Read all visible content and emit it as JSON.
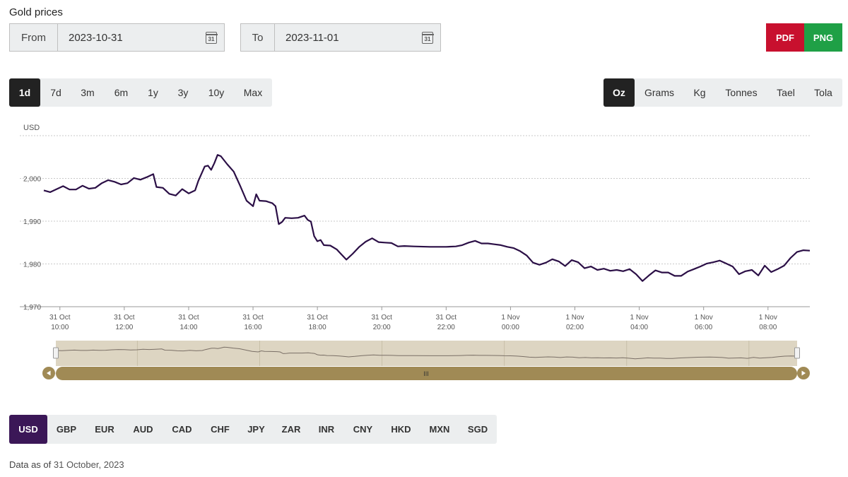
{
  "title": "Gold prices",
  "from": {
    "label": "From",
    "value": "2023-10-31"
  },
  "to": {
    "label": "To",
    "value": "2023-11-01"
  },
  "calendar_icon_text": "31",
  "export": {
    "pdf": "PDF",
    "png": "PNG",
    "pdf_color": "#c8102e",
    "png_color": "#1fa046"
  },
  "ranges": [
    "1d",
    "7d",
    "3m",
    "6m",
    "1y",
    "3y",
    "10y",
    "Max"
  ],
  "active_range": "1d",
  "units": [
    "Oz",
    "Grams",
    "Kg",
    "Tonnes",
    "Tael",
    "Tola"
  ],
  "active_unit": "Oz",
  "currencies": [
    "USD",
    "GBP",
    "EUR",
    "AUD",
    "CAD",
    "CHF",
    "JPY",
    "ZAR",
    "INR",
    "CNY",
    "HKD",
    "MXN",
    "SGD"
  ],
  "active_currency": "USD",
  "footer": {
    "prefix": "Data as of",
    "date": "31 October, 2023"
  },
  "chart_data": {
    "type": "line",
    "ylabel": "USD",
    "ylim": [
      1970,
      2010
    ],
    "yticks": [
      "1,970",
      "1,980",
      "1,990",
      "2,000"
    ],
    "ytick_values": [
      1970,
      1980,
      1990,
      2000
    ],
    "xlim": [
      9.5,
      33.3
    ],
    "xticks": [
      {
        "h": 10,
        "day": "31 Oct",
        "time": "10:00"
      },
      {
        "h": 12,
        "day": "31 Oct",
        "time": "12:00"
      },
      {
        "h": 14,
        "day": "31 Oct",
        "time": "14:00"
      },
      {
        "h": 16,
        "day": "31 Oct",
        "time": "16:00"
      },
      {
        "h": 18,
        "day": "31 Oct",
        "time": "18:00"
      },
      {
        "h": 20,
        "day": "31 Oct",
        "time": "20:00"
      },
      {
        "h": 22,
        "day": "31 Oct",
        "time": "22:00"
      },
      {
        "h": 24,
        "day": "1 Nov",
        "time": "00:00"
      },
      {
        "h": 26,
        "day": "1 Nov",
        "time": "02:00"
      },
      {
        "h": 28,
        "day": "1 Nov",
        "time": "04:00"
      },
      {
        "h": 30,
        "day": "1 Nov",
        "time": "06:00"
      },
      {
        "h": 32,
        "day": "1 Nov",
        "time": "08:00"
      }
    ],
    "series": [
      {
        "line_color": "#2b0f46",
        "points": [
          [
            9.5,
            1997.2
          ],
          [
            9.7,
            1996.8
          ],
          [
            9.9,
            1997.5
          ],
          [
            10.1,
            1998.2
          ],
          [
            10.3,
            1997.4
          ],
          [
            10.5,
            1997.4
          ],
          [
            10.7,
            1998.3
          ],
          [
            10.9,
            1997.6
          ],
          [
            11.1,
            1997.8
          ],
          [
            11.3,
            1998.9
          ],
          [
            11.5,
            1999.6
          ],
          [
            11.7,
            1999.2
          ],
          [
            11.9,
            1998.6
          ],
          [
            12.1,
            1998.9
          ],
          [
            12.3,
            2000.1
          ],
          [
            12.5,
            1999.7
          ],
          [
            12.7,
            2000.3
          ],
          [
            12.9,
            2001.0
          ],
          [
            13.0,
            1998.0
          ],
          [
            13.2,
            1997.8
          ],
          [
            13.4,
            1996.4
          ],
          [
            13.6,
            1996.0
          ],
          [
            13.8,
            1997.5
          ],
          [
            14.0,
            1996.5
          ],
          [
            14.2,
            1997.2
          ],
          [
            14.3,
            1999.4
          ],
          [
            14.5,
            2002.8
          ],
          [
            14.6,
            2003.0
          ],
          [
            14.7,
            2002.0
          ],
          [
            14.8,
            2003.6
          ],
          [
            14.9,
            2005.5
          ],
          [
            15.0,
            2005.2
          ],
          [
            15.2,
            2003.3
          ],
          [
            15.4,
            2001.6
          ],
          [
            15.6,
            1998.3
          ],
          [
            15.8,
            1994.8
          ],
          [
            16.0,
            1993.5
          ],
          [
            16.1,
            1996.3
          ],
          [
            16.2,
            1994.8
          ],
          [
            16.4,
            1994.7
          ],
          [
            16.6,
            1994.2
          ],
          [
            16.7,
            1993.5
          ],
          [
            16.8,
            1989.3
          ],
          [
            16.9,
            1989.8
          ],
          [
            17.0,
            1990.8
          ],
          [
            17.2,
            1990.7
          ],
          [
            17.4,
            1990.8
          ],
          [
            17.6,
            1991.3
          ],
          [
            17.7,
            1990.3
          ],
          [
            17.8,
            1989.9
          ],
          [
            17.9,
            1986.5
          ],
          [
            18.0,
            1985.3
          ],
          [
            18.1,
            1985.6
          ],
          [
            18.2,
            1984.4
          ],
          [
            18.4,
            1984.3
          ],
          [
            18.6,
            1983.4
          ],
          [
            18.7,
            1982.6
          ],
          [
            18.9,
            1981.0
          ],
          [
            19.1,
            1982.4
          ],
          [
            19.3,
            1984.0
          ],
          [
            19.5,
            1985.2
          ],
          [
            19.7,
            1986.0
          ],
          [
            19.9,
            1985.1
          ],
          [
            20.1,
            1985.0
          ],
          [
            20.3,
            1984.9
          ],
          [
            20.5,
            1984.1
          ],
          [
            20.7,
            1984.2
          ],
          [
            21.0,
            1984.1
          ],
          [
            21.5,
            1984.0
          ],
          [
            22.0,
            1984.0
          ],
          [
            22.3,
            1984.1
          ],
          [
            22.5,
            1984.4
          ],
          [
            22.7,
            1985.0
          ],
          [
            22.9,
            1985.4
          ],
          [
            23.1,
            1984.8
          ],
          [
            23.3,
            1984.8
          ],
          [
            23.5,
            1984.6
          ],
          [
            23.7,
            1984.4
          ],
          [
            23.9,
            1984.0
          ],
          [
            24.1,
            1983.7
          ],
          [
            24.3,
            1983.0
          ],
          [
            24.5,
            1982.0
          ],
          [
            24.7,
            1980.3
          ],
          [
            24.9,
            1979.8
          ],
          [
            25.1,
            1980.3
          ],
          [
            25.3,
            1981.1
          ],
          [
            25.5,
            1980.6
          ],
          [
            25.7,
            1979.5
          ],
          [
            25.9,
            1980.9
          ],
          [
            26.1,
            1980.4
          ],
          [
            26.3,
            1979.0
          ],
          [
            26.5,
            1979.4
          ],
          [
            26.7,
            1978.6
          ],
          [
            26.9,
            1978.9
          ],
          [
            27.1,
            1978.4
          ],
          [
            27.3,
            1978.6
          ],
          [
            27.5,
            1978.3
          ],
          [
            27.7,
            1978.8
          ],
          [
            27.9,
            1977.6
          ],
          [
            28.1,
            1976.0
          ],
          [
            28.3,
            1977.3
          ],
          [
            28.5,
            1978.5
          ],
          [
            28.7,
            1978.0
          ],
          [
            28.9,
            1978.0
          ],
          [
            29.1,
            1977.2
          ],
          [
            29.3,
            1977.2
          ],
          [
            29.5,
            1978.2
          ],
          [
            29.7,
            1978.8
          ],
          [
            29.9,
            1979.4
          ],
          [
            30.1,
            1980.1
          ],
          [
            30.3,
            1980.4
          ],
          [
            30.5,
            1980.8
          ],
          [
            30.7,
            1980.1
          ],
          [
            30.9,
            1979.4
          ],
          [
            31.1,
            1977.6
          ],
          [
            31.3,
            1978.3
          ],
          [
            31.5,
            1978.6
          ],
          [
            31.7,
            1977.3
          ],
          [
            31.9,
            1979.6
          ],
          [
            32.1,
            1978.1
          ],
          [
            32.3,
            1978.8
          ],
          [
            32.5,
            1979.6
          ],
          [
            32.7,
            1981.4
          ],
          [
            32.9,
            1982.8
          ],
          [
            33.1,
            1983.2
          ],
          [
            33.3,
            1983.1
          ]
        ]
      }
    ],
    "grid": true,
    "navigator": {
      "fill_color": "#ddd5c2",
      "bar_color": "#a08a55",
      "grip_text": "III"
    }
  }
}
